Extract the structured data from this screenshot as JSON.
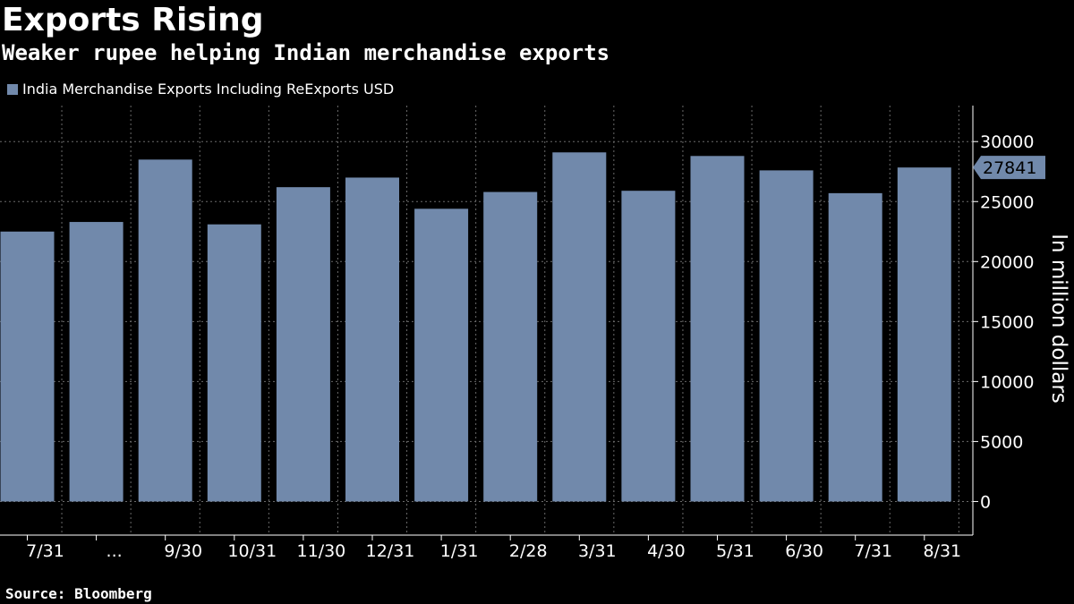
{
  "chart_data": {
    "type": "bar",
    "title": "Exports Rising",
    "subtitle": "Weaker rupee helping Indian merchandise exports",
    "series": [
      {
        "name": "India Merchandise Exports Including ReExports USD",
        "color": "#7189ab",
        "values": [
          22500,
          23300,
          28500,
          23100,
          26200,
          27000,
          24400,
          25800,
          29100,
          25900,
          28800,
          27600,
          25700,
          27841
        ]
      }
    ],
    "categories": [
      "7/31",
      "...",
      "9/30",
      "10/31",
      "11/30",
      "12/31",
      "1/31",
      "2/28",
      "3/31",
      "4/30",
      "5/31",
      "6/30",
      "7/31",
      "8/31"
    ],
    "last_value_label": "27841",
    "ylabel": "In million dollars",
    "xlabel": "",
    "ylim": [
      -2800,
      33000
    ],
    "yticks": [
      0,
      5000,
      10000,
      15000,
      20000,
      25000,
      30000
    ],
    "grid": true,
    "legend": "top-left",
    "source": "Source: Bloomberg"
  }
}
